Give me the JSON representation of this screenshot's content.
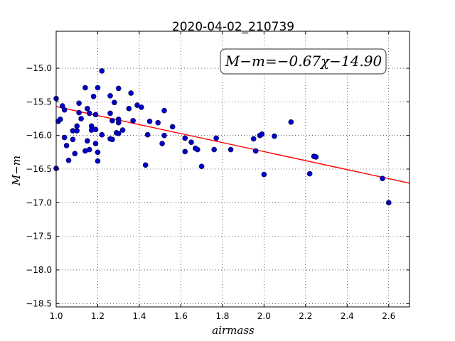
{
  "chart_data": {
    "type": "scatter",
    "title": "2020-04-02_210739",
    "xlabel": "airmass",
    "ylabel": "M−m",
    "xlim": [
      1.0,
      2.7
    ],
    "ylim": [
      -18.55,
      -14.45
    ],
    "y_inverted": true,
    "grid": true,
    "xticks": [
      1.0,
      1.2,
      1.4,
      1.6,
      1.8,
      2.0,
      2.2,
      2.4,
      2.6
    ],
    "xtick_labels": [
      "1.0",
      "1.2",
      "1.4",
      "1.6",
      "1.8",
      "2.0",
      "2.2",
      "2.4",
      "2.6"
    ],
    "yticks": [
      -15.0,
      -15.5,
      -16.0,
      -16.5,
      -17.0,
      -17.5,
      -18.0,
      -18.5
    ],
    "ytick_labels": [
      "−15.0",
      "−15.5",
      "−16.0",
      "−16.5",
      "−17.0",
      "−17.5",
      "−18.0",
      "−18.5"
    ],
    "annotation": "M−m=−0.67χ−14.90",
    "fit": {
      "slope": -0.67,
      "intercept": -14.9,
      "color": "#ff0000"
    },
    "marker_color": "#0000cc",
    "points": [
      [
        1.0,
        -15.45
      ],
      [
        1.0,
        -16.49
      ],
      [
        1.01,
        -15.79
      ],
      [
        1.02,
        -15.76
      ],
      [
        1.03,
        -15.56
      ],
      [
        1.04,
        -16.03
      ],
      [
        1.04,
        -15.62
      ],
      [
        1.05,
        -16.15
      ],
      [
        1.06,
        -16.37
      ],
      [
        1.08,
        -16.06
      ],
      [
        1.08,
        -15.93
      ],
      [
        1.09,
        -16.27
      ],
      [
        1.1,
        -15.93
      ],
      [
        1.1,
        -15.86
      ],
      [
        1.11,
        -15.52
      ],
      [
        1.11,
        -15.66
      ],
      [
        1.12,
        -15.75
      ],
      [
        1.14,
        -15.29
      ],
      [
        1.14,
        -16.23
      ],
      [
        1.15,
        -15.6
      ],
      [
        1.15,
        -16.08
      ],
      [
        1.16,
        -16.21
      ],
      [
        1.16,
        -15.67
      ],
      [
        1.17,
        -15.86
      ],
      [
        1.17,
        -15.92
      ],
      [
        1.18,
        -15.42
      ],
      [
        1.19,
        -16.12
      ],
      [
        1.19,
        -15.69
      ],
      [
        1.19,
        -15.91
      ],
      [
        1.2,
        -16.25
      ],
      [
        1.2,
        -16.38
      ],
      [
        1.2,
        -15.29
      ],
      [
        1.22,
        -15.04
      ],
      [
        1.22,
        -15.99
      ],
      [
        1.26,
        -16.05
      ],
      [
        1.26,
        -15.67
      ],
      [
        1.26,
        -15.41
      ],
      [
        1.27,
        -16.06
      ],
      [
        1.27,
        -15.78
      ],
      [
        1.28,
        -15.51
      ],
      [
        1.29,
        -15.96
      ],
      [
        1.3,
        -15.3
      ],
      [
        1.3,
        -15.97
      ],
      [
        1.3,
        -15.76
      ],
      [
        1.3,
        -15.81
      ],
      [
        1.32,
        -15.92
      ],
      [
        1.35,
        -15.6
      ],
      [
        1.36,
        -15.37
      ],
      [
        1.37,
        -15.78
      ],
      [
        1.39,
        -15.55
      ],
      [
        1.41,
        -15.58
      ],
      [
        1.43,
        -16.44
      ],
      [
        1.44,
        -15.99
      ],
      [
        1.45,
        -15.79
      ],
      [
        1.49,
        -15.81
      ],
      [
        1.51,
        -16.12
      ],
      [
        1.52,
        -15.63
      ],
      [
        1.52,
        -16.0
      ],
      [
        1.56,
        -15.87
      ],
      [
        1.62,
        -16.04
      ],
      [
        1.62,
        -16.24
      ],
      [
        1.65,
        -16.1
      ],
      [
        1.67,
        -16.19
      ],
      [
        1.68,
        -16.21
      ],
      [
        1.7,
        -16.46
      ],
      [
        1.76,
        -16.21
      ],
      [
        1.77,
        -16.04
      ],
      [
        1.84,
        -16.21
      ],
      [
        1.95,
        -16.05
      ],
      [
        1.96,
        -16.23
      ],
      [
        1.98,
        -16.0
      ],
      [
        1.99,
        -15.98
      ],
      [
        2.0,
        -16.58
      ],
      [
        2.05,
        -16.01
      ],
      [
        2.13,
        -15.8
      ],
      [
        2.22,
        -16.57
      ],
      [
        2.24,
        -16.31
      ],
      [
        2.25,
        -16.32
      ],
      [
        2.57,
        -16.64
      ],
      [
        2.6,
        -17.0
      ]
    ]
  }
}
